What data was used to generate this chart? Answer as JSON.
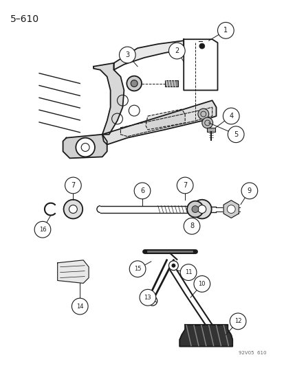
{
  "title": "5–610",
  "watermark": "92V05  610",
  "bg_color": "#ffffff",
  "text_color": "#1a1a1a",
  "fig_width": 4.14,
  "fig_height": 5.33,
  "dpi": 100
}
